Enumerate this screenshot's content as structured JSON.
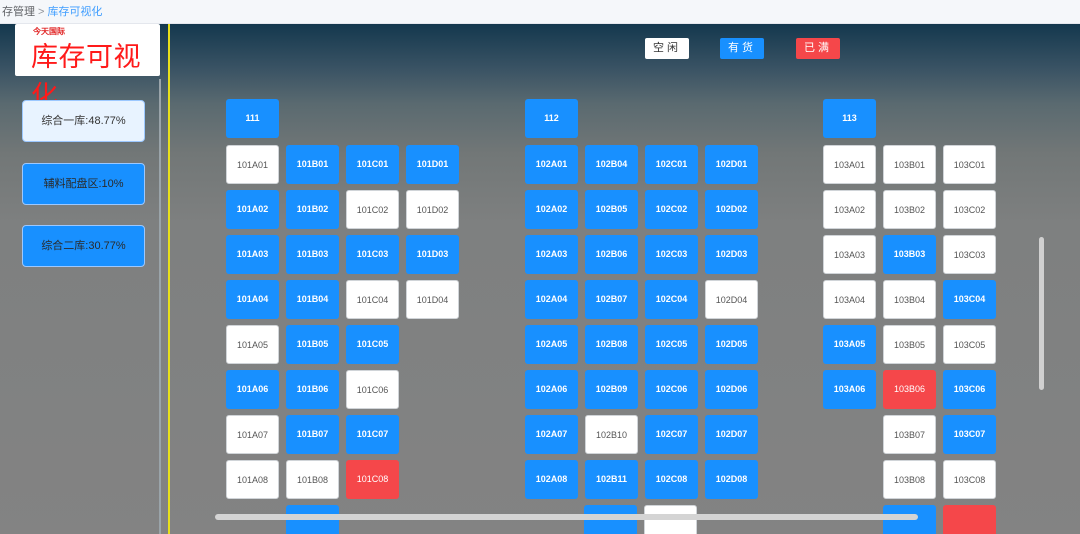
{
  "breadcrumb": {
    "parent": "存管理",
    "separator": ">",
    "current": "库存可视化"
  },
  "logo": {
    "subtitle": "今天国际",
    "title": "库存可视化"
  },
  "zones": [
    {
      "label": "综合一库:48.77%",
      "active": true
    },
    {
      "label": "辅料配盘区:10%",
      "active": false
    },
    {
      "label": "综合二库:30.77%",
      "active": false
    }
  ],
  "legend": {
    "free": "空闲",
    "stock": "有货",
    "full": "已满"
  },
  "statuses": {
    "free": "空闲",
    "stock": "有货",
    "full": "已满"
  },
  "colors": {
    "stock": "#1890ff",
    "free": "#ffffff",
    "full": "#f5474a",
    "highlight": "#e8e01a"
  },
  "headers": [
    "111",
    "112",
    "113"
  ],
  "warehouse_1": [
    {
      "id": "101A01",
      "status": "free"
    },
    {
      "id": "101B01",
      "status": "stock"
    },
    {
      "id": "101C01",
      "status": "stock"
    },
    {
      "id": "101D01",
      "status": "stock"
    },
    {
      "id": "101A02",
      "status": "stock"
    },
    {
      "id": "101B02",
      "status": "stock"
    },
    {
      "id": "101C02",
      "status": "free"
    },
    {
      "id": "101D02",
      "status": "free"
    },
    {
      "id": "101A03",
      "status": "stock"
    },
    {
      "id": "101B03",
      "status": "stock"
    },
    {
      "id": "101C03",
      "status": "stock"
    },
    {
      "id": "101D03",
      "status": "stock"
    },
    {
      "id": "101A04",
      "status": "stock"
    },
    {
      "id": "101B04",
      "status": "stock"
    },
    {
      "id": "101C04",
      "status": "free"
    },
    {
      "id": "101D04",
      "status": "free"
    },
    {
      "id": "101A05",
      "status": "free"
    },
    {
      "id": "101B05",
      "status": "stock"
    },
    {
      "id": "101C05",
      "status": "stock"
    },
    {
      "id": "101A06",
      "status": "stock"
    },
    {
      "id": "101B06",
      "status": "stock"
    },
    {
      "id": "101C06",
      "status": "free"
    },
    {
      "id": "101A07",
      "status": "free"
    },
    {
      "id": "101B07",
      "status": "stock"
    },
    {
      "id": "101C07",
      "status": "stock"
    },
    {
      "id": "101A08",
      "status": "free"
    },
    {
      "id": "101B08",
      "status": "free"
    },
    {
      "id": "101C08",
      "status": "full"
    }
  ],
  "warehouse_2": [
    {
      "id": "102A01",
      "status": "stock"
    },
    {
      "id": "102B04",
      "status": "stock"
    },
    {
      "id": "102C01",
      "status": "stock"
    },
    {
      "id": "102D01",
      "status": "stock"
    },
    {
      "id": "102A02",
      "status": "stock"
    },
    {
      "id": "102B05",
      "status": "stock"
    },
    {
      "id": "102C02",
      "status": "stock"
    },
    {
      "id": "102D02",
      "status": "stock"
    },
    {
      "id": "102A03",
      "status": "stock"
    },
    {
      "id": "102B06",
      "status": "stock"
    },
    {
      "id": "102C03",
      "status": "stock"
    },
    {
      "id": "102D03",
      "status": "stock"
    },
    {
      "id": "102A04",
      "status": "stock"
    },
    {
      "id": "102B07",
      "status": "stock"
    },
    {
      "id": "102C04",
      "status": "stock"
    },
    {
      "id": "102D04",
      "status": "free"
    },
    {
      "id": "102A05",
      "status": "stock"
    },
    {
      "id": "102B08",
      "status": "stock"
    },
    {
      "id": "102C05",
      "status": "stock"
    },
    {
      "id": "102D05",
      "status": "stock"
    },
    {
      "id": "102A06",
      "status": "stock"
    },
    {
      "id": "102B09",
      "status": "stock"
    },
    {
      "id": "102C06",
      "status": "stock"
    },
    {
      "id": "102D06",
      "status": "stock"
    },
    {
      "id": "102A07",
      "status": "stock"
    },
    {
      "id": "102B10",
      "status": "free"
    },
    {
      "id": "102C07",
      "status": "stock"
    },
    {
      "id": "102D07",
      "status": "stock"
    },
    {
      "id": "102A08",
      "status": "stock"
    },
    {
      "id": "102B11",
      "status": "stock"
    },
    {
      "id": "102C08",
      "status": "stock"
    },
    {
      "id": "102D08",
      "status": "stock"
    }
  ],
  "warehouse_3": [
    {
      "id": "103A01",
      "status": "free"
    },
    {
      "id": "103B01",
      "status": "free"
    },
    {
      "id": "103C01",
      "status": "free"
    },
    {
      "id": "103A02",
      "status": "free"
    },
    {
      "id": "103B02",
      "status": "free"
    },
    {
      "id": "103C02",
      "status": "free"
    },
    {
      "id": "103A03",
      "status": "free"
    },
    {
      "id": "103B03",
      "status": "stock"
    },
    {
      "id": "103C03",
      "status": "free"
    },
    {
      "id": "103A04",
      "status": "free"
    },
    {
      "id": "103B04",
      "status": "free"
    },
    {
      "id": "103C04",
      "status": "stock"
    },
    {
      "id": "103A05",
      "status": "stock"
    },
    {
      "id": "103B05",
      "status": "free"
    },
    {
      "id": "103C05",
      "status": "free"
    },
    {
      "id": "103A06",
      "status": "stock"
    },
    {
      "id": "103B06",
      "status": "full"
    },
    {
      "id": "103C06",
      "status": "stock"
    },
    {
      "id": "103B07",
      "status": "free"
    },
    {
      "id": "103C07",
      "status": "stock"
    },
    {
      "id": "103B08",
      "status": "free"
    },
    {
      "id": "103C08",
      "status": "free"
    }
  ],
  "partial_row": [
    {
      "status": "stock"
    },
    {
      "status": "stock"
    },
    {
      "status": "free"
    },
    {
      "status": "stock"
    },
    {
      "status": "full"
    }
  ]
}
